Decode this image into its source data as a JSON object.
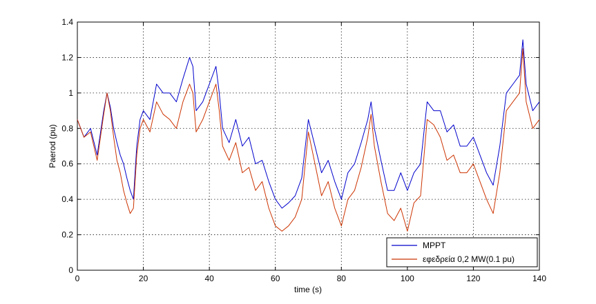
{
  "chart_data": {
    "type": "line",
    "title": "",
    "xlabel": "time (s)",
    "ylabel": "Paerod (pu)",
    "xlim": [
      0,
      140
    ],
    "ylim": [
      0,
      1.4
    ],
    "x_ticks": [
      "0",
      "20",
      "40",
      "60",
      "80",
      "100",
      "120",
      "140"
    ],
    "y_ticks": [
      "0",
      "0.2",
      "0.4",
      "0.6",
      "0.8",
      "1",
      "1.2",
      "1.4"
    ],
    "grid": true,
    "legend_position": "bottom-right",
    "series": [
      {
        "name": "MPPT",
        "color": "#0000cc",
        "x": [
          0,
          2,
          4,
          6,
          8,
          9,
          10,
          11,
          12,
          13,
          14,
          15,
          16,
          17,
          18,
          19,
          20,
          22,
          24,
          26,
          28,
          30,
          32,
          34,
          35,
          36,
          38,
          40,
          42,
          43,
          44,
          46,
          48,
          50,
          52,
          54,
          56,
          58,
          60,
          62,
          64,
          66,
          68,
          70,
          72,
          74,
          76,
          78,
          80,
          82,
          84,
          86,
          88,
          89,
          90,
          92,
          94,
          96,
          98,
          100,
          102,
          104,
          106,
          108,
          110,
          112,
          114,
          116,
          118,
          120,
          122,
          124,
          126,
          128,
          130,
          132,
          134,
          135,
          136,
          138,
          140
        ],
        "y": [
          0.85,
          0.75,
          0.8,
          0.65,
          0.9,
          1.0,
          0.92,
          0.8,
          0.72,
          0.65,
          0.6,
          0.52,
          0.45,
          0.4,
          0.7,
          0.85,
          0.9,
          0.85,
          1.05,
          1.0,
          1.0,
          0.95,
          1.08,
          1.2,
          1.15,
          0.9,
          0.95,
          1.05,
          1.15,
          1.0,
          0.8,
          0.72,
          0.85,
          0.7,
          0.75,
          0.6,
          0.62,
          0.5,
          0.4,
          0.35,
          0.38,
          0.42,
          0.52,
          0.85,
          0.7,
          0.55,
          0.62,
          0.5,
          0.4,
          0.55,
          0.6,
          0.72,
          0.85,
          0.95,
          0.8,
          0.62,
          0.45,
          0.45,
          0.55,
          0.45,
          0.55,
          0.6,
          0.95,
          0.9,
          0.9,
          0.78,
          0.82,
          0.7,
          0.7,
          0.75,
          0.65,
          0.55,
          0.48,
          0.7,
          1.0,
          1.05,
          1.1,
          1.3,
          1.05,
          0.9,
          0.95
        ]
      },
      {
        "name": "εφεδρεία 0,2 MW(0.1 pu)",
        "color": "#cc3300",
        "x": [
          0,
          2,
          4,
          6,
          8,
          9,
          10,
          11,
          12,
          13,
          14,
          15,
          16,
          17,
          18,
          19,
          20,
          22,
          24,
          26,
          28,
          30,
          32,
          34,
          35,
          36,
          38,
          40,
          42,
          43,
          44,
          46,
          48,
          50,
          52,
          54,
          56,
          58,
          60,
          62,
          64,
          66,
          68,
          70,
          72,
          74,
          76,
          78,
          80,
          82,
          84,
          86,
          88,
          89,
          90,
          92,
          94,
          96,
          98,
          100,
          102,
          104,
          106,
          108,
          110,
          112,
          114,
          116,
          118,
          120,
          122,
          124,
          126,
          128,
          130,
          132,
          134,
          135,
          136,
          138,
          140
        ],
        "y": [
          0.85,
          0.75,
          0.78,
          0.62,
          0.88,
          1.0,
          0.9,
          0.75,
          0.62,
          0.55,
          0.45,
          0.38,
          0.32,
          0.35,
          0.65,
          0.8,
          0.85,
          0.78,
          0.95,
          0.88,
          0.85,
          0.8,
          0.95,
          1.05,
          1.0,
          0.78,
          0.85,
          0.95,
          1.05,
          0.9,
          0.7,
          0.62,
          0.72,
          0.55,
          0.58,
          0.45,
          0.5,
          0.35,
          0.25,
          0.22,
          0.25,
          0.3,
          0.4,
          0.78,
          0.6,
          0.42,
          0.5,
          0.35,
          0.25,
          0.4,
          0.45,
          0.58,
          0.75,
          0.88,
          0.7,
          0.5,
          0.32,
          0.28,
          0.35,
          0.22,
          0.38,
          0.42,
          0.85,
          0.82,
          0.75,
          0.62,
          0.65,
          0.55,
          0.55,
          0.6,
          0.5,
          0.4,
          0.32,
          0.55,
          0.9,
          0.95,
          1.0,
          1.25,
          0.95,
          0.8,
          0.85
        ]
      }
    ]
  }
}
